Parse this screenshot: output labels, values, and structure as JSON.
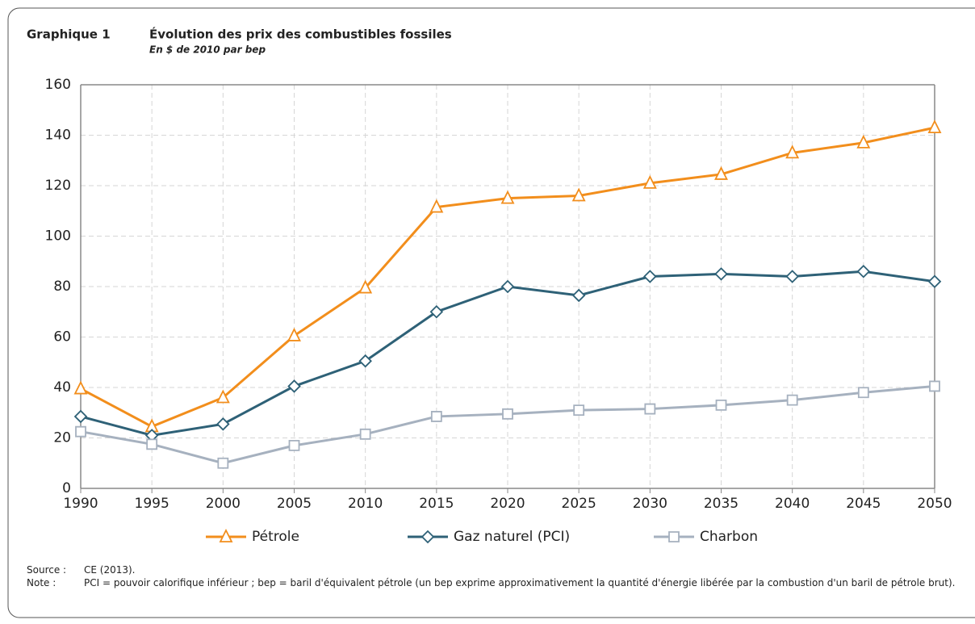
{
  "chart_data": {
    "type": "line",
    "label": "Graphique 1",
    "title": "Évolution des prix des combustibles fossiles",
    "subtitle": "En $ de 2010 par bep",
    "x": [
      1990,
      1995,
      2000,
      2005,
      2010,
      2015,
      2020,
      2025,
      2030,
      2035,
      2040,
      2045,
      2050
    ],
    "series": [
      {
        "name": "Pétrole",
        "color": "#f28e1c",
        "marker": "triangle",
        "values": [
          39.5,
          24.5,
          36,
          60.5,
          79.5,
          111.5,
          115,
          116,
          121,
          124.5,
          133,
          137,
          143
        ]
      },
      {
        "name": "Gaz naturel (PCI)",
        "color": "#2e6177",
        "marker": "diamond",
        "values": [
          28.5,
          21,
          25.5,
          40.5,
          50.5,
          70,
          80,
          76.5,
          84,
          85,
          84,
          86,
          82
        ]
      },
      {
        "name": "Charbon",
        "color": "#a6b1bf",
        "marker": "square",
        "values": [
          22.5,
          17.5,
          10,
          17,
          21.5,
          28.5,
          29.5,
          31,
          31.5,
          33,
          35,
          38,
          40.5
        ]
      }
    ],
    "xlim": [
      1990,
      2050
    ],
    "xticks": [
      1990,
      1995,
      2000,
      2005,
      2010,
      2015,
      2020,
      2025,
      2030,
      2035,
      2040,
      2045,
      2050
    ],
    "ylim": [
      0,
      160
    ],
    "yticks": [
      0,
      20,
      40,
      60,
      80,
      100,
      120,
      140,
      160
    ],
    "grid": true,
    "legend": "bottom",
    "source_label": "Source :",
    "source": "CE (2013).",
    "note_label": "Note :",
    "note": "PCI = pouvoir calorifique inférieur ; bep = baril d'équivalent pétrole (un bep exprime approximativement la quantité d'énergie libérée par la combustion d'un baril de pétrole brut)."
  }
}
